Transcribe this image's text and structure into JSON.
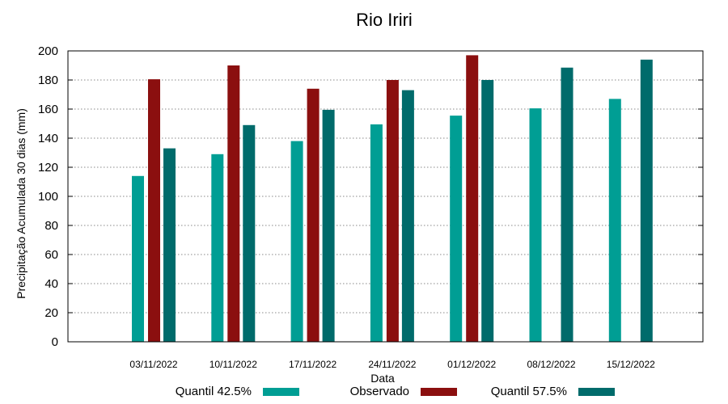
{
  "chart_data": {
    "type": "bar",
    "title": "Rio Iriri",
    "xlabel": "Data",
    "ylabel": "Precipitação Acumulada 30 dias (mm)",
    "ylim": [
      0,
      200
    ],
    "yticks": [
      0,
      20,
      40,
      60,
      80,
      100,
      120,
      140,
      160,
      180,
      200
    ],
    "grid": true,
    "legend_position": "bottom",
    "categories": [
      "03/11/2022",
      "10/11/2022",
      "17/11/2022",
      "24/11/2022",
      "01/12/2022",
      "08/12/2022",
      "15/12/2022"
    ],
    "series": [
      {
        "name": "Quantil 42.5%",
        "color": "#009e94",
        "values": [
          114,
          129,
          138,
          149.5,
          155.5,
          160.5,
          167
        ]
      },
      {
        "name": "Observado",
        "color": "#8b0f0f",
        "values": [
          180.5,
          190,
          174,
          180,
          197,
          null,
          null
        ]
      },
      {
        "name": "Quantil 57.5%",
        "color": "#006b6b",
        "values": [
          133,
          149,
          159.5,
          173,
          180,
          188.5,
          194
        ]
      }
    ]
  }
}
